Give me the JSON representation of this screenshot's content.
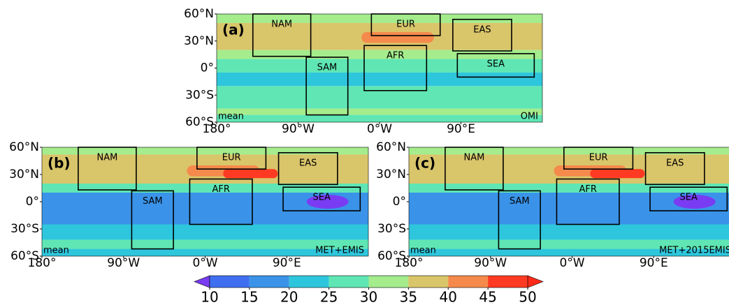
{
  "panels": [
    {
      "label": "(a)",
      "corner_left": "mean",
      "corner_right": "OMI"
    },
    {
      "label": "(b)",
      "corner_left": "mean",
      "corner_right": "MET+EMIS"
    },
    {
      "label": "(c)",
      "corner_left": "mean",
      "corner_right": "MET+2015EMIS"
    }
  ],
  "regions": [
    "NAM",
    "EUR",
    "EAS",
    "SAM",
    "AFR",
    "SEA"
  ],
  "xlim": [
    -180,
    180
  ],
  "ylim": [
    -60,
    60
  ],
  "xticks": [
    {
      "value": -180,
      "label": "180°"
    },
    {
      "value": -90,
      "label": "90°W"
    },
    {
      "value": 0,
      "label": "0°W"
    },
    {
      "value": 90,
      "label": "90°E"
    }
  ],
  "yticks": [
    {
      "value": 60,
      "label": "60°N"
    },
    {
      "value": 30,
      "label": "30°N"
    },
    {
      "value": 0,
      "label": "0°"
    },
    {
      "value": -30,
      "label": "30°S"
    },
    {
      "value": -60,
      "label": "60°S"
    }
  ],
  "colorbar": {
    "ticks": [
      10,
      15,
      20,
      25,
      30,
      35,
      40,
      45,
      50
    ],
    "under_color": "#7a3cf2",
    "over_color": "#ff2a1a",
    "colors": [
      "#3f6ff0",
      "#3a93e8",
      "#2ec6dc",
      "#5fe6b4",
      "#a4ec8c",
      "#d9c56a",
      "#f58a4c",
      "#ff3a22"
    ]
  }
}
